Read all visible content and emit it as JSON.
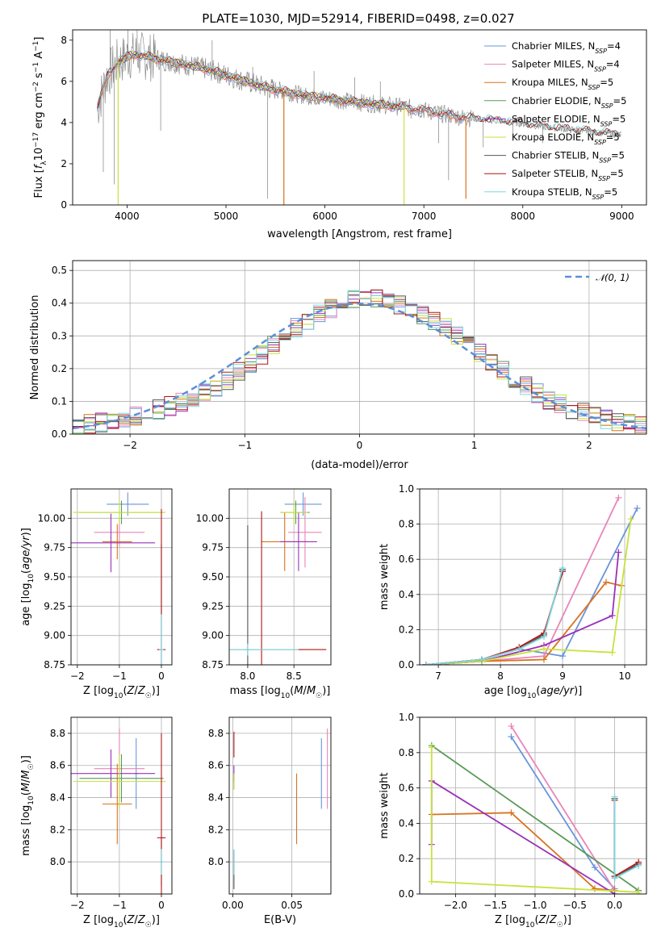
{
  "figure_title": "PLATE=1030, MJD=52914, FIBERID=0498, z=0.027",
  "colors": {
    "chabrier_miles": "#6a95d9",
    "salpeter_miles": "#e885b9",
    "kroupa_miles": "#d8731e",
    "chabrier_elodie": "#5a9a5a",
    "salpeter_elodie": "#9a32b8",
    "kroupa_elodie": "#c8e23c",
    "chabrier_stelib": "#555555",
    "salpeter_stelib": "#b01616",
    "kroupa_stelib": "#7fd8e0",
    "data": "#808080",
    "normal": "#5b8fd8",
    "grid": "#b0b0b0"
  },
  "chart_data": [
    {
      "id": "spectrum",
      "type": "line",
      "xlabel": "wavelength [Angstrom, rest frame]",
      "ylabel": "Flux [f_λ10^-17 erg cm^-2 s^-1 A^-1]",
      "xlim": [
        3450,
        9250
      ],
      "ylim": [
        0,
        8.5
      ],
      "xticks": [
        4000,
        5000,
        6000,
        7000,
        8000,
        9000
      ],
      "yticks": [
        0,
        2,
        4,
        6,
        8
      ],
      "grid": false,
      "legend_position": "upper-right",
      "legend": [
        {
          "label": "Chabrier MILES, N",
          "sub": "SSP",
          "suffix": "=4",
          "color_key": "chabrier_miles"
        },
        {
          "label": "Salpeter MILES, N",
          "sub": "SSP",
          "suffix": "=4",
          "color_key": "salpeter_miles"
        },
        {
          "label": "Kroupa MILES, N",
          "sub": "SSP",
          "suffix": "=5",
          "color_key": "kroupa_miles"
        },
        {
          "label": "Chabrier ELODIE, N",
          "sub": "SSP",
          "suffix": "=5",
          "color_key": "chabrier_elodie"
        },
        {
          "label": "Salpeter ELODIE, N",
          "sub": "SSP",
          "suffix": "=5",
          "color_key": "salpeter_elodie"
        },
        {
          "label": "Kroupa ELODIE, N",
          "sub": "SSP",
          "suffix": "=5",
          "color_key": "kroupa_elodie"
        },
        {
          "label": "Chabrier STELIB, N",
          "sub": "SSP",
          "suffix": "=5",
          "color_key": "chabrier_stelib"
        },
        {
          "label": "Salpeter STELIB, N",
          "sub": "SSP",
          "suffix": "=5",
          "color_key": "salpeter_stelib"
        },
        {
          "label": "Kroupa STELIB, N",
          "sub": "SSP",
          "suffix": "=5",
          "color_key": "kroupa_stelib"
        }
      ],
      "continuum": [
        [
          3700,
          4.7
        ],
        [
          3800,
          6.3
        ],
        [
          3900,
          6.9
        ],
        [
          4000,
          7.2
        ],
        [
          4100,
          7.3
        ],
        [
          4200,
          7.2
        ],
        [
          4400,
          7.0
        ],
        [
          4600,
          6.8
        ],
        [
          4800,
          6.6
        ],
        [
          5000,
          6.3
        ],
        [
          5200,
          6.0
        ],
        [
          5400,
          5.7
        ],
        [
          5600,
          5.5
        ],
        [
          5800,
          5.3
        ],
        [
          6000,
          5.2
        ],
        [
          6200,
          5.05
        ],
        [
          6400,
          4.95
        ],
        [
          6600,
          4.85
        ],
        [
          6800,
          4.75
        ],
        [
          7000,
          4.6
        ],
        [
          7200,
          4.4
        ],
        [
          7400,
          4.25
        ],
        [
          7600,
          4.15
        ],
        [
          7800,
          4.05
        ],
        [
          8000,
          3.95
        ],
        [
          8200,
          3.8
        ],
        [
          8400,
          3.7
        ],
        [
          8600,
          3.6
        ],
        [
          8800,
          3.5
        ],
        [
          9000,
          3.4
        ]
      ],
      "data_spikes": [
        [
          3760,
          1.6
        ],
        [
          3830,
          8.5
        ],
        [
          3870,
          1.0
        ],
        [
          4010,
          8.5
        ],
        [
          4102,
          8.5
        ],
        [
          4340,
          3.6
        ],
        [
          4860,
          8.0
        ],
        [
          5010,
          6.5
        ],
        [
          5270,
          6.7
        ],
        [
          5420,
          0.3
        ],
        [
          5890,
          6.5
        ],
        [
          6300,
          6.2
        ],
        [
          6560,
          6.0
        ],
        [
          6870,
          4.2
        ],
        [
          7150,
          3.0
        ],
        [
          7250,
          1.2
        ],
        [
          7600,
          2.8
        ],
        [
          7900,
          3.1
        ],
        [
          8200,
          3.0
        ],
        [
          8600,
          3.5
        ]
      ],
      "model_dips": [
        {
          "x": 3910,
          "y": 0,
          "color_key": "kroupa_elodie"
        },
        {
          "x": 5585,
          "y": 0,
          "color_key": "kroupa_miles"
        },
        {
          "x": 6800,
          "y": 0,
          "color_key": "kroupa_elodie"
        },
        {
          "x": 7425,
          "y": 0.3,
          "color_key": "kroupa_miles"
        }
      ]
    },
    {
      "id": "residuals",
      "type": "histogram",
      "xlabel": "(data-model)/error",
      "ylabel": "Normed distribution",
      "xlim": [
        -2.5,
        2.5
      ],
      "ylim": [
        0,
        0.53
      ],
      "xticks": [
        -2,
        -1,
        0,
        1,
        2
      ],
      "yticks": [
        0.0,
        0.1,
        0.2,
        0.3,
        0.4,
        0.5
      ],
      "grid": true,
      "legend_position": "upper-right",
      "legend": [
        {
          "label": "𝒩(0, 1)",
          "color_key": "normal",
          "style": "dashed"
        }
      ],
      "bin_width": 0.1,
      "bin_start": -2.5,
      "mean_heights": [
        0.025,
        0.03,
        0.035,
        0.04,
        0.045,
        0.055,
        0.065,
        0.075,
        0.085,
        0.095,
        0.105,
        0.125,
        0.14,
        0.165,
        0.19,
        0.215,
        0.24,
        0.27,
        0.3,
        0.325,
        0.345,
        0.365,
        0.385,
        0.4,
        0.41,
        0.42,
        0.415,
        0.405,
        0.395,
        0.38,
        0.365,
        0.345,
        0.325,
        0.3,
        0.275,
        0.245,
        0.22,
        0.195,
        0.17,
        0.145,
        0.125,
        0.105,
        0.09,
        0.075,
        0.065,
        0.055,
        0.045,
        0.038,
        0.032,
        0.028
      ]
    },
    {
      "id": "age_vs_Z",
      "type": "errorbar",
      "xlabel": "Z [log10(Z/Z☉)]",
      "ylabel": "age [log10(age/yr)]",
      "xlim": [
        -2.15,
        0.25
      ],
      "ylim": [
        8.75,
        10.25
      ],
      "xticks": [
        -2,
        -1,
        0
      ],
      "yticks": [
        8.75,
        9.0,
        9.25,
        9.5,
        9.75,
        10.0
      ],
      "grid": true,
      "points": [
        {
          "color_key": "chabrier_miles",
          "x": -0.8,
          "xerr": 0.5,
          "y": 10.12,
          "yerr": 0.1
        },
        {
          "color_key": "salpeter_miles",
          "x": -1.0,
          "xerr": 0.6,
          "y": 9.88,
          "yerr": 0.12
        },
        {
          "color_key": "kroupa_miles",
          "x": -1.05,
          "xerr": 0.35,
          "y": 9.8,
          "yerr": 0.15
        },
        {
          "color_key": "chabrier_elodie",
          "x": -0.95,
          "xerr": 1.0,
          "y": 10.05,
          "yerr": 0.1
        },
        {
          "color_key": "salpeter_elodie",
          "x": -1.2,
          "xerr": 1.05,
          "y": 9.79,
          "yerr": 0.25
        },
        {
          "color_key": "kroupa_elodie",
          "x": -1.0,
          "xerr": 1.1,
          "y": 10.05,
          "yerr": 0.1
        },
        {
          "color_key": "chabrier_stelib",
          "x": 0.0,
          "xerr": 0.02,
          "y": 8.88,
          "yerr": 0.9
        },
        {
          "color_key": "salpeter_stelib",
          "x": 0.0,
          "xerr": 0.1,
          "y": 8.88,
          "yerr": 1.2
        },
        {
          "color_key": "kroupa_stelib",
          "x": 0.0,
          "xerr": 0.05,
          "y": 8.88,
          "yerr": 0.3
        }
      ]
    },
    {
      "id": "age_vs_mass",
      "type": "errorbar",
      "xlabel": "mass [log10(M/M☉)]",
      "ylabel": "",
      "xlim": [
        7.8,
        8.9
      ],
      "ylim": [
        8.75,
        10.25
      ],
      "xticks": [
        8.0,
        8.5
      ],
      "yticks": [
        8.75,
        9.0,
        9.25,
        9.5,
        9.75,
        10.0
      ],
      "grid": true,
      "points": [
        {
          "color_key": "chabrier_miles",
          "x": 8.6,
          "xerr": 0.2,
          "y": 10.12,
          "yerr": 0.1
        },
        {
          "color_key": "salpeter_miles",
          "x": 8.62,
          "xerr": 0.18,
          "y": 9.88,
          "yerr": 0.3
        },
        {
          "color_key": "kroupa_miles",
          "x": 8.4,
          "xerr": 0.25,
          "y": 9.8,
          "yerr": 0.25
        },
        {
          "color_key": "chabrier_elodie",
          "x": 8.52,
          "xerr": 0.15,
          "y": 10.05,
          "yerr": 0.1
        },
        {
          "color_key": "salpeter_elodie",
          "x": 8.55,
          "xerr": 0.2,
          "y": 9.8,
          "yerr": 0.25
        },
        {
          "color_key": "kroupa_elodie",
          "x": 8.5,
          "xerr": 0.15,
          "y": 10.05,
          "yerr": 0.1
        },
        {
          "color_key": "chabrier_stelib",
          "x": 8.0,
          "xerr": 0.02,
          "y": 8.88,
          "yerr": 1.06
        },
        {
          "color_key": "salpeter_stelib",
          "x": 8.15,
          "xerr": 0.7,
          "y": 8.88,
          "yerr": 1.18
        },
        {
          "color_key": "kroupa_stelib",
          "x": 8.0,
          "xerr": 0.55,
          "y": 8.88,
          "yerr": 0.05
        }
      ]
    },
    {
      "id": "weight_vs_age",
      "type": "line",
      "xlabel": "age [log10(age/yr)]",
      "ylabel": "mass weight",
      "xlim": [
        6.7,
        10.35
      ],
      "ylim": [
        0,
        1.0
      ],
      "xticks": [
        7,
        8,
        9,
        10
      ],
      "yticks": [
        0.0,
        0.2,
        0.4,
        0.6,
        0.8,
        1.0
      ],
      "grid": true,
      "series": [
        {
          "color_key": "chabrier_miles",
          "x": [
            6.8,
            7.7,
            8.3,
            9.0,
            10.2
          ],
          "y": [
            0.0,
            0.03,
            0.09,
            0.05,
            0.89
          ]
        },
        {
          "color_key": "salpeter_miles",
          "x": [
            6.8,
            7.7,
            8.7,
            9.9
          ],
          "y": [
            0.0,
            0.02,
            0.05,
            0.95
          ]
        },
        {
          "color_key": "kroupa_miles",
          "x": [
            6.8,
            7.7,
            8.7,
            9.7,
            9.95
          ],
          "y": [
            0.0,
            0.02,
            0.03,
            0.47,
            0.45
          ]
        },
        {
          "color_key": "chabrier_elodie",
          "x": [
            6.8,
            7.7,
            8.3,
            8.7,
            9.0
          ],
          "y": [
            0.0,
            0.03,
            0.09,
            0.17,
            0.54
          ]
        },
        {
          "color_key": "salpeter_elodie",
          "x": [
            6.8,
            7.7,
            8.7,
            9.8,
            9.9
          ],
          "y": [
            0.0,
            0.02,
            0.11,
            0.28,
            0.64
          ]
        },
        {
          "color_key": "kroupa_elodie",
          "x": [
            6.8,
            7.7,
            8.7,
            9.8,
            10.1
          ],
          "y": [
            0.0,
            0.02,
            0.09,
            0.07,
            0.83
          ]
        },
        {
          "color_key": "chabrier_stelib",
          "x": [
            6.8,
            7.7,
            8.3,
            8.7,
            9.0
          ],
          "y": [
            0.0,
            0.03,
            0.09,
            0.17,
            0.54
          ]
        },
        {
          "color_key": "salpeter_stelib",
          "x": [
            6.8,
            7.7,
            8.3,
            8.7,
            9.0
          ],
          "y": [
            0.0,
            0.03,
            0.1,
            0.18,
            0.53
          ]
        },
        {
          "color_key": "kroupa_stelib",
          "x": [
            6.8,
            7.7,
            8.3,
            8.7,
            9.0
          ],
          "y": [
            0.0,
            0.03,
            0.09,
            0.16,
            0.55
          ]
        }
      ]
    },
    {
      "id": "mass_vs_Z",
      "type": "errorbar",
      "xlabel": "Z [log10(Z/Z☉)]",
      "ylabel": "mass [log10(M/M☉)]",
      "xlim": [
        -2.15,
        0.25
      ],
      "ylim": [
        7.8,
        8.9
      ],
      "xticks": [
        -2,
        -1,
        0
      ],
      "yticks": [
        8.0,
        8.2,
        8.4,
        8.6,
        8.8
      ],
      "grid": true,
      "points": [
        {
          "color_key": "chabrier_miles",
          "x": -0.6,
          "xerr": 0.05,
          "y": 8.55,
          "yerr": 0.22
        },
        {
          "color_key": "salpeter_miles",
          "x": -1.0,
          "xerr": 0.6,
          "y": 8.58,
          "yerr": 0.25
        },
        {
          "color_key": "kroupa_miles",
          "x": -1.05,
          "xerr": 0.35,
          "y": 8.36,
          "yerr": 0.25
        },
        {
          "color_key": "chabrier_elodie",
          "x": -0.95,
          "xerr": 1.0,
          "y": 8.52,
          "yerr": 0.15
        },
        {
          "color_key": "salpeter_elodie",
          "x": -1.2,
          "xerr": 1.05,
          "y": 8.55,
          "yerr": 0.15
        },
        {
          "color_key": "kroupa_elodie",
          "x": -1.0,
          "xerr": 1.1,
          "y": 8.5,
          "yerr": 0.17
        },
        {
          "color_key": "chabrier_stelib",
          "x": 0.0,
          "xerr": 0.02,
          "y": 8.0,
          "yerr": 0.15
        },
        {
          "color_key": "salpeter_stelib",
          "x": 0.0,
          "xerr": 0.1,
          "y": 8.15,
          "yerr": 0.65
        },
        {
          "color_key": "kroupa_stelib",
          "x": 0.0,
          "xerr": 0.05,
          "y": 8.0,
          "yerr": 0.08
        }
      ]
    },
    {
      "id": "mass_vs_ebv",
      "type": "errorbar",
      "xlabel": "E(B-V)",
      "ylabel": "",
      "xlim": [
        -0.003,
        0.083
      ],
      "ylim": [
        7.8,
        8.9
      ],
      "xticks": [
        0.0,
        0.05
      ],
      "yticks": [
        8.0,
        8.2,
        8.4,
        8.6,
        8.8
      ],
      "grid": true,
      "points": [
        {
          "color_key": "chabrier_miles",
          "x": 0.075,
          "xerr": 0.0,
          "y": 8.55,
          "yerr": 0.22
        },
        {
          "color_key": "salpeter_miles",
          "x": 0.08,
          "xerr": 0.0,
          "y": 8.58,
          "yerr": 0.25
        },
        {
          "color_key": "kroupa_miles",
          "x": 0.054,
          "xerr": 0.0,
          "y": 8.33,
          "yerr": 0.22
        },
        {
          "color_key": "chabrier_elodie",
          "x": 0.001,
          "xerr": 0.0,
          "y": 8.5,
          "yerr": 0.05
        },
        {
          "color_key": "salpeter_elodie",
          "x": 0.001,
          "xerr": 0.0,
          "y": 8.55,
          "yerr": 0.05
        },
        {
          "color_key": "kroupa_elodie",
          "x": 0.001,
          "xerr": 0.0,
          "y": 8.5,
          "yerr": 0.05
        },
        {
          "color_key": "chabrier_stelib",
          "x": 0.001,
          "xerr": 0.0,
          "y": 7.95,
          "yerr": 0.12
        },
        {
          "color_key": "salpeter_stelib",
          "x": 0.001,
          "xerr": 0.0,
          "y": 8.73,
          "yerr": 0.08
        },
        {
          "color_key": "kroupa_stelib",
          "x": 0.001,
          "xerr": 0.0,
          "y": 8.0,
          "yerr": 0.08
        }
      ]
    },
    {
      "id": "weight_vs_Z",
      "type": "line",
      "xlabel": "Z [log10(Z/Z☉)]",
      "ylabel": "mass weight",
      "xlim": [
        -2.45,
        0.4
      ],
      "ylim": [
        0,
        1.0
      ],
      "xticks": [
        -2.0,
        -1.5,
        -1.0,
        -0.5,
        0.0
      ],
      "yticks": [
        0.0,
        0.2,
        0.4,
        0.6,
        0.8,
        1.0
      ],
      "grid": true,
      "series": [
        {
          "color_key": "chabrier_miles",
          "x": [
            -1.3,
            -0.25,
            0.0
          ],
          "y": [
            0.89,
            0.15,
            0.03
          ]
        },
        {
          "color_key": "salpeter_miles",
          "x": [
            -1.3,
            0.0
          ],
          "y": [
            0.95,
            0.02
          ]
        },
        {
          "color_key": "kroupa_miles",
          "x": [
            -2.3,
            -1.3,
            -0.25,
            0.0
          ],
          "y": [
            0.45,
            0.46,
            0.03,
            0.02
          ]
        },
        {
          "color_key": "chabrier_elodie",
          "x": [
            -2.3,
            0.3
          ],
          "y": [
            0.84,
            0.02
          ]
        },
        {
          "color_key": "salpeter_elodie",
          "x": [
            -2.3,
            -2.3,
            0.0
          ],
          "y": [
            0.28,
            0.64,
            0.0
          ]
        },
        {
          "color_key": "kroupa_elodie",
          "x": [
            -2.3,
            -2.3,
            0.3
          ],
          "y": [
            0.83,
            0.07,
            0.01
          ]
        },
        {
          "color_key": "chabrier_stelib",
          "x": [
            0.0,
            0.0,
            0.3
          ],
          "y": [
            0.54,
            0.09,
            0.17
          ]
        },
        {
          "color_key": "salpeter_stelib",
          "x": [
            0.0,
            0.0,
            0.3
          ],
          "y": [
            0.53,
            0.1,
            0.18
          ]
        },
        {
          "color_key": "kroupa_stelib",
          "x": [
            0.0,
            0.0,
            0.3
          ],
          "y": [
            0.55,
            0.09,
            0.16
          ]
        }
      ]
    }
  ]
}
